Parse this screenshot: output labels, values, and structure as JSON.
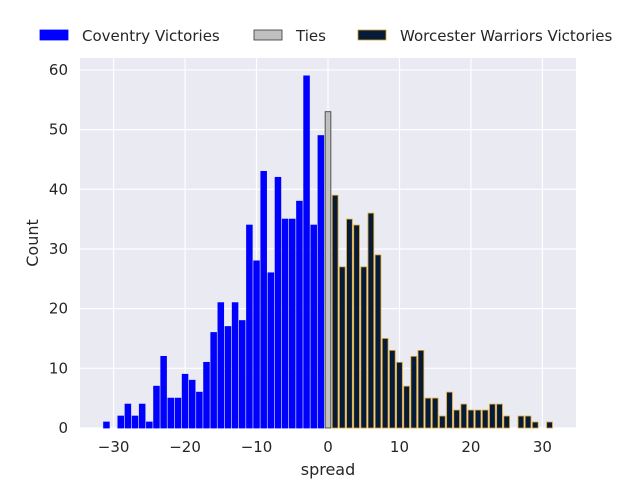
{
  "chart_data": {
    "type": "bar",
    "xlabel": "spread",
    "ylabel": "Count",
    "xlim": [
      -34.7,
      34.7
    ],
    "ylim": [
      0,
      62
    ],
    "xticks": [
      -30,
      -20,
      -10,
      0,
      10,
      20,
      30
    ],
    "xtick_labels": [
      "−30",
      "−20",
      "−10",
      "0",
      "10",
      "20",
      "30"
    ],
    "yticks": [
      0,
      10,
      20,
      30,
      40,
      50,
      60
    ],
    "ytick_labels": [
      "0",
      "10",
      "20",
      "30",
      "40",
      "50",
      "60"
    ],
    "grid": true,
    "legend_position": "top",
    "bar_width": 0.8,
    "series": [
      {
        "name": "Coventry Victories",
        "color": "#0000ff",
        "edgecolor": "#0000ff",
        "x": [
          -31,
          -29,
          -28,
          -27,
          -26,
          -25,
          -24,
          -23,
          -22,
          -21,
          -20,
          -19,
          -18,
          -17,
          -16,
          -15,
          -14,
          -13,
          -12,
          -11,
          -10,
          -9,
          -8,
          -7,
          -6,
          -5,
          -4,
          -3,
          -2,
          -1
        ],
        "values": [
          1,
          2,
          4,
          2,
          4,
          1,
          7,
          12,
          5,
          5,
          9,
          8,
          6,
          11,
          16,
          21,
          17,
          21,
          18,
          34,
          28,
          43,
          26,
          42,
          35,
          35,
          38,
          59,
          34,
          49
        ]
      },
      {
        "name": "Ties",
        "color": "#c0c0c0",
        "edgecolor": "#333333",
        "x": [
          0
        ],
        "values": [
          53
        ]
      },
      {
        "name": "Worcester Warriors Victories",
        "color": "#061a3a",
        "edgecolor": "#d9a020",
        "x": [
          1,
          2,
          3,
          4,
          5,
          6,
          7,
          8,
          9,
          10,
          11,
          12,
          13,
          14,
          15,
          16,
          17,
          18,
          19,
          20,
          21,
          22,
          23,
          24,
          25,
          27,
          28,
          29,
          31
        ],
        "values": [
          39,
          27,
          35,
          34,
          27,
          36,
          29,
          15,
          13,
          11,
          7,
          12,
          13,
          5,
          5,
          2,
          6,
          3,
          4,
          3,
          3,
          3,
          4,
          4,
          2,
          2,
          2,
          1,
          1
        ]
      }
    ]
  }
}
